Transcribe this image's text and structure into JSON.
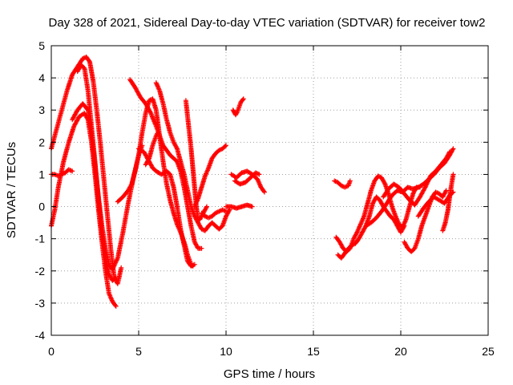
{
  "chart_data": {
    "type": "scatter",
    "title": "Day 328 of 2021, Sidereal Day-to-day VTEC variation (SDTVAR) for receiver tow2",
    "xlabel": "GPS time / hours",
    "ylabel": "SDTVAR / TECUs",
    "xlim": [
      0,
      25
    ],
    "ylim": [
      -4,
      5
    ],
    "xticks": [
      "0",
      "5",
      "10",
      "15",
      "20",
      "25"
    ],
    "yticks": [
      "-4",
      "-3",
      "-2",
      "-1",
      "0",
      "1",
      "2",
      "3",
      "4",
      "5"
    ],
    "grid": true,
    "marker": "+",
    "color": "#ff0000",
    "tracks": [
      [
        [
          0.0,
          1.8
        ],
        [
          0.3,
          2.4
        ],
        [
          0.6,
          3.0
        ],
        [
          0.9,
          3.6
        ],
        [
          1.2,
          4.1
        ],
        [
          1.5,
          4.35
        ],
        [
          1.8,
          4.6
        ],
        [
          2.0,
          4.65
        ],
        [
          2.2,
          4.5
        ],
        [
          2.4,
          3.9
        ],
        [
          2.6,
          3.0
        ],
        [
          2.8,
          2.0
        ],
        [
          3.0,
          0.9
        ],
        [
          3.2,
          -0.2
        ],
        [
          3.4,
          -1.3
        ],
        [
          3.6,
          -2.2
        ],
        [
          3.8,
          -2.4
        ],
        [
          4.0,
          -1.9
        ]
      ],
      [
        [
          0.0,
          -0.6
        ],
        [
          0.2,
          -0.1
        ],
        [
          0.4,
          0.6
        ],
        [
          0.7,
          1.4
        ],
        [
          1.0,
          2.0
        ],
        [
          1.3,
          2.5
        ],
        [
          1.6,
          2.8
        ],
        [
          1.9,
          2.9
        ],
        [
          2.1,
          2.7
        ],
        [
          2.3,
          2.0
        ],
        [
          2.5,
          1.0
        ],
        [
          2.7,
          -0.1
        ],
        [
          2.9,
          -1.1
        ],
        [
          3.1,
          -2.0
        ],
        [
          3.3,
          -2.7
        ],
        [
          3.5,
          -2.95
        ],
        [
          3.7,
          -3.1
        ]
      ],
      [
        [
          1.2,
          2.7
        ],
        [
          1.5,
          3.0
        ],
        [
          1.8,
          3.2
        ],
        [
          2.1,
          3.0
        ],
        [
          2.3,
          2.3
        ],
        [
          2.5,
          1.3
        ],
        [
          2.7,
          0.3
        ],
        [
          2.9,
          -0.6
        ],
        [
          3.1,
          -1.3
        ],
        [
          3.3,
          -1.8
        ],
        [
          3.5,
          -1.95
        ],
        [
          3.8,
          -1.6
        ],
        [
          4.1,
          -0.8
        ],
        [
          4.4,
          0.1
        ],
        [
          4.7,
          0.9
        ],
        [
          5.0,
          1.6
        ],
        [
          5.2,
          1.9
        ]
      ],
      [
        [
          0.0,
          1.0
        ],
        [
          0.2,
          1.0
        ],
        [
          0.4,
          0.95
        ],
        [
          0.6,
          1.0
        ],
        [
          0.8,
          1.05
        ],
        [
          1.0,
          1.15
        ],
        [
          1.2,
          1.1
        ]
      ],
      [
        [
          1.5,
          4.2
        ],
        [
          1.7,
          4.4
        ],
        [
          1.9,
          4.3
        ],
        [
          2.1,
          3.6
        ],
        [
          2.3,
          2.5
        ],
        [
          2.5,
          1.4
        ],
        [
          2.7,
          0.2
        ],
        [
          2.9,
          -0.8
        ],
        [
          3.1,
          -1.6
        ],
        [
          3.3,
          -2.1
        ],
        [
          3.5,
          -2.3
        ],
        [
          3.7,
          -2.2
        ]
      ],
      [
        [
          3.8,
          0.15
        ],
        [
          4.1,
          0.3
        ],
        [
          4.4,
          0.5
        ],
        [
          4.6,
          0.7
        ],
        [
          4.8,
          1.1
        ],
        [
          5.0,
          1.6
        ],
        [
          5.2,
          2.3
        ],
        [
          5.4,
          2.9
        ],
        [
          5.6,
          3.3
        ],
        [
          5.8,
          3.35
        ],
        [
          6.0,
          3.0
        ],
        [
          6.2,
          2.2
        ],
        [
          6.4,
          1.4
        ],
        [
          6.6,
          0.7
        ],
        [
          6.8,
          0.2
        ],
        [
          7.0,
          -0.2
        ],
        [
          7.2,
          -0.55
        ],
        [
          7.4,
          -0.8
        ],
        [
          7.6,
          -1.1
        ],
        [
          7.8,
          -1.5
        ],
        [
          8.0,
          -1.8
        ],
        [
          8.1,
          -1.85
        ]
      ],
      [
        [
          4.5,
          3.95
        ],
        [
          4.8,
          3.7
        ],
        [
          5.1,
          3.4
        ],
        [
          5.4,
          3.2
        ],
        [
          5.7,
          2.9
        ],
        [
          6.0,
          2.5
        ],
        [
          6.2,
          2.2
        ],
        [
          6.4,
          1.9
        ],
        [
          6.6,
          1.75
        ],
        [
          6.8,
          1.6
        ],
        [
          7.0,
          1.5
        ],
        [
          7.2,
          1.4
        ],
        [
          7.4,
          1.1
        ],
        [
          7.6,
          0.6
        ],
        [
          7.8,
          0.0
        ],
        [
          8.0,
          -0.6
        ],
        [
          8.2,
          -1.1
        ],
        [
          8.4,
          -1.3
        ],
        [
          8.6,
          -1.3
        ]
      ],
      [
        [
          5.0,
          1.8
        ],
        [
          5.3,
          1.7
        ],
        [
          5.6,
          1.4
        ],
        [
          5.8,
          1.2
        ],
        [
          6.0,
          1.1
        ],
        [
          6.3,
          1.0
        ],
        [
          6.6,
          1.1
        ],
        [
          6.8,
          1.0
        ],
        [
          7.0,
          0.6
        ],
        [
          7.2,
          0.0
        ],
        [
          7.4,
          -0.7
        ],
        [
          7.6,
          -1.2
        ],
        [
          7.8,
          -1.7
        ],
        [
          8.0,
          -1.85
        ],
        [
          8.2,
          -1.8
        ]
      ],
      [
        [
          5.4,
          1.3
        ],
        [
          5.6,
          1.5
        ],
        [
          5.8,
          1.9
        ],
        [
          6.0,
          2.2
        ],
        [
          6.1,
          2.3
        ]
      ],
      [
        [
          6.0,
          3.85
        ],
        [
          6.2,
          3.6
        ],
        [
          6.4,
          3.2
        ],
        [
          6.6,
          2.7
        ],
        [
          6.8,
          2.3
        ],
        [
          7.0,
          2.0
        ],
        [
          7.2,
          1.8
        ],
        [
          7.4,
          1.4
        ],
        [
          7.6,
          1.0
        ],
        [
          7.8,
          0.5
        ],
        [
          8.0,
          0.0
        ],
        [
          8.2,
          -0.3
        ],
        [
          8.4,
          -0.5
        ],
        [
          8.6,
          -0.7
        ],
        [
          8.8,
          -0.75
        ],
        [
          9.0,
          -0.6
        ],
        [
          9.2,
          -0.5
        ],
        [
          9.4,
          -0.6
        ],
        [
          9.6,
          -0.7
        ],
        [
          9.8,
          -0.6
        ],
        [
          10.0,
          -0.3
        ],
        [
          10.2,
          -0.1
        ]
      ],
      [
        [
          7.7,
          3.3
        ],
        [
          7.8,
          2.8
        ],
        [
          7.9,
          2.3
        ],
        [
          8.0,
          1.8
        ],
        [
          8.1,
          1.2
        ],
        [
          8.2,
          0.6
        ],
        [
          8.3,
          0.0
        ],
        [
          8.4,
          -0.4
        ],
        [
          8.5,
          -0.4
        ],
        [
          8.7,
          -0.2
        ],
        [
          8.9,
          0.0
        ]
      ],
      [
        [
          8.2,
          0.0
        ],
        [
          8.4,
          0.25
        ],
        [
          8.6,
          0.6
        ],
        [
          8.8,
          0.95
        ],
        [
          9.0,
          1.2
        ],
        [
          9.2,
          1.5
        ],
        [
          9.4,
          1.65
        ],
        [
          9.6,
          1.75
        ],
        [
          9.8,
          1.8
        ],
        [
          10.0,
          1.9
        ]
      ],
      [
        [
          8.6,
          -0.2
        ],
        [
          8.8,
          -0.3
        ],
        [
          9.0,
          -0.35
        ],
        [
          9.2,
          -0.3
        ],
        [
          9.4,
          -0.2
        ],
        [
          9.6,
          -0.15
        ],
        [
          9.8,
          -0.1
        ],
        [
          10.0,
          -0.15
        ]
      ],
      [
        [
          10.0,
          0.0
        ],
        [
          10.3,
          0.0
        ],
        [
          10.6,
          -0.05
        ],
        [
          10.9,
          0.0
        ],
        [
          11.2,
          0.05
        ],
        [
          11.5,
          0.0
        ]
      ],
      [
        [
          10.4,
          3.0
        ],
        [
          10.55,
          2.85
        ],
        [
          10.65,
          2.95
        ],
        [
          10.75,
          3.1
        ],
        [
          10.85,
          3.25
        ],
        [
          11.0,
          3.35
        ]
      ],
      [
        [
          10.3,
          1.0
        ],
        [
          10.6,
          0.9
        ],
        [
          10.9,
          1.05
        ],
        [
          11.2,
          1.1
        ],
        [
          11.5,
          1.0
        ],
        [
          11.8,
          0.85
        ],
        [
          12.0,
          0.6
        ],
        [
          12.2,
          0.45
        ]
      ],
      [
        [
          10.5,
          0.8
        ],
        [
          10.8,
          0.7
        ],
        [
          11.1,
          0.75
        ],
        [
          11.4,
          0.9
        ],
        [
          11.7,
          1.05
        ],
        [
          11.9,
          1.0
        ]
      ],
      [
        [
          16.2,
          0.8
        ],
        [
          16.4,
          0.75
        ],
        [
          16.6,
          0.65
        ],
        [
          16.8,
          0.6
        ],
        [
          17.0,
          0.65
        ],
        [
          17.1,
          0.8
        ]
      ],
      [
        [
          16.3,
          -0.95
        ],
        [
          16.5,
          -1.1
        ],
        [
          16.7,
          -1.3
        ],
        [
          16.9,
          -1.4
        ],
        [
          17.1,
          -1.3
        ],
        [
          17.3,
          -1.0
        ],
        [
          17.5,
          -0.8
        ],
        [
          17.7,
          -0.55
        ],
        [
          17.9,
          -0.3
        ],
        [
          18.1,
          0.1
        ],
        [
          18.3,
          0.5
        ],
        [
          18.5,
          0.8
        ],
        [
          18.7,
          0.95
        ],
        [
          18.9,
          0.9
        ],
        [
          19.1,
          0.7
        ],
        [
          19.3,
          0.4
        ],
        [
          19.5,
          0.0
        ],
        [
          19.7,
          -0.3
        ],
        [
          19.9,
          -0.55
        ],
        [
          20.1,
          -0.65
        ],
        [
          20.3,
          -0.4
        ],
        [
          20.5,
          0.0
        ],
        [
          20.7,
          0.4
        ],
        [
          20.9,
          0.6
        ],
        [
          21.1,
          0.6
        ]
      ],
      [
        [
          16.4,
          -1.5
        ],
        [
          16.6,
          -1.6
        ],
        [
          16.8,
          -1.45
        ],
        [
          17.0,
          -1.3
        ],
        [
          17.2,
          -1.2
        ],
        [
          17.4,
          -1.15
        ],
        [
          17.6,
          -1.0
        ],
        [
          17.8,
          -0.8
        ],
        [
          18.0,
          -0.6
        ],
        [
          18.2,
          -0.3
        ],
        [
          18.4,
          0.1
        ],
        [
          18.6,
          0.3
        ],
        [
          18.8,
          0.2
        ],
        [
          19.0,
          0.0
        ],
        [
          19.2,
          -0.15
        ],
        [
          19.4,
          -0.3
        ],
        [
          19.6,
          -0.4
        ],
        [
          19.8,
          -0.6
        ],
        [
          20.0,
          -0.8
        ],
        [
          20.2,
          -0.6
        ]
      ],
      [
        [
          18.0,
          -0.6
        ],
        [
          18.3,
          -0.5
        ],
        [
          18.6,
          -0.35
        ],
        [
          18.9,
          -0.15
        ],
        [
          19.2,
          0.1
        ],
        [
          19.5,
          0.35
        ],
        [
          19.8,
          0.5
        ],
        [
          20.1,
          0.45
        ],
        [
          20.4,
          0.6
        ],
        [
          20.7,
          0.55
        ],
        [
          21.0,
          0.6
        ],
        [
          21.3,
          0.7
        ],
        [
          21.6,
          0.85
        ],
        [
          21.9,
          1.0
        ],
        [
          22.2,
          1.2
        ],
        [
          22.5,
          1.35
        ],
        [
          22.8,
          1.6
        ],
        [
          23.0,
          1.8
        ]
      ],
      [
        [
          19.0,
          0.3
        ],
        [
          19.3,
          0.55
        ],
        [
          19.6,
          0.7
        ],
        [
          19.9,
          0.6
        ],
        [
          20.2,
          0.4
        ],
        [
          20.5,
          0.2
        ],
        [
          20.8,
          0.05
        ],
        [
          21.1,
          0.3
        ],
        [
          21.4,
          0.6
        ],
        [
          21.7,
          0.95
        ],
        [
          22.0,
          1.1
        ],
        [
          22.3,
          1.3
        ],
        [
          22.6,
          1.5
        ],
        [
          22.8,
          1.7
        ]
      ],
      [
        [
          20.2,
          -1.1
        ],
        [
          20.4,
          -1.3
        ],
        [
          20.6,
          -1.4
        ],
        [
          20.8,
          -1.3
        ],
        [
          21.0,
          -1.0
        ],
        [
          21.2,
          -0.6
        ],
        [
          21.4,
          -0.3
        ],
        [
          21.6,
          0.0
        ],
        [
          21.8,
          0.3
        ],
        [
          22.0,
          0.45
        ],
        [
          22.2,
          0.4
        ],
        [
          22.4,
          0.3
        ],
        [
          22.6,
          0.5
        ]
      ],
      [
        [
          21.0,
          -0.3
        ],
        [
          21.3,
          -0.05
        ],
        [
          21.6,
          0.15
        ],
        [
          21.9,
          0.3
        ],
        [
          22.2,
          0.2
        ],
        [
          22.5,
          0.1
        ],
        [
          22.8,
          0.35
        ],
        [
          23.0,
          0.45
        ]
      ],
      [
        [
          22.4,
          -0.75
        ],
        [
          22.55,
          -0.5
        ],
        [
          22.7,
          -0.1
        ],
        [
          22.85,
          0.5
        ],
        [
          23.0,
          1.0
        ]
      ]
    ]
  }
}
